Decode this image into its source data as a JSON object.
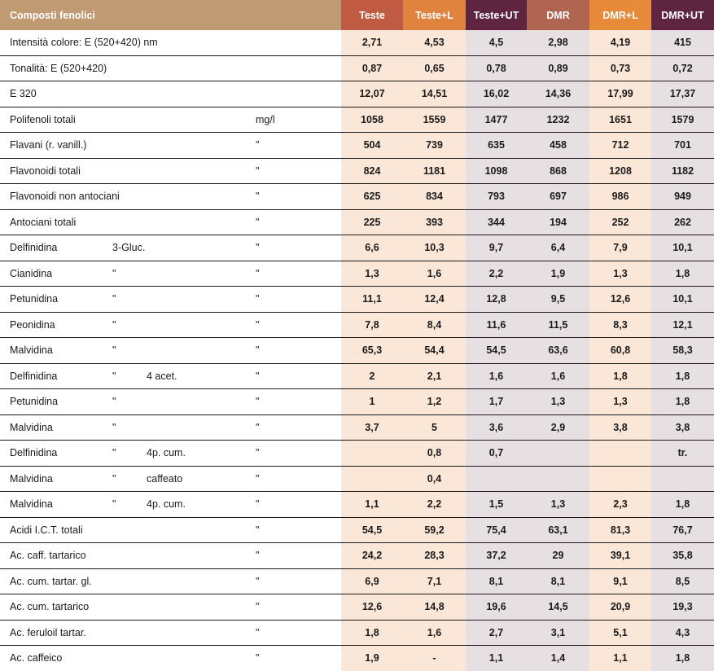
{
  "header": {
    "title": "Composti fenolici",
    "columns": [
      "Teste",
      "Teste+L",
      "Teste+UT",
      "DMR",
      "DMR+L",
      "DMR+UT"
    ]
  },
  "rows": [
    {
      "name": "Intensità colore: E (520+420) nm",
      "q": "",
      "s": "",
      "u": "",
      "v": [
        "2,71",
        "4,53",
        "4,5",
        "2,98",
        "4,19",
        "415"
      ]
    },
    {
      "name": "Tonalità: E (520+420)",
      "q": "",
      "s": "",
      "u": "",
      "v": [
        "0,87",
        "0,65",
        "0,78",
        "0,89",
        "0,73",
        "0,72"
      ]
    },
    {
      "name": "E 320",
      "q": "",
      "s": "",
      "u": "",
      "v": [
        "12,07",
        "14,51",
        "16,02",
        "14,36",
        "17,99",
        "17,37"
      ]
    },
    {
      "name": "Polifenoli totali",
      "q": "",
      "s": "",
      "u": "mg/l",
      "v": [
        "1058",
        "1559",
        "1477",
        "1232",
        "1651",
        "1579"
      ]
    },
    {
      "name": "Flavani (r. vanill.)",
      "q": "",
      "s": "",
      "u": "\"",
      "v": [
        "504",
        "739",
        "635",
        "458",
        "712",
        "701"
      ]
    },
    {
      "name": "Flavonoidi totali",
      "q": "",
      "s": "",
      "u": "\"",
      "v": [
        "824",
        "1181",
        "1098",
        "868",
        "1208",
        "1182"
      ]
    },
    {
      "name": "Flavonoidi non antociani",
      "q": "",
      "s": "",
      "u": "\"",
      "v": [
        "625",
        "834",
        "793",
        "697",
        "986",
        "949"
      ]
    },
    {
      "name": "Antociani totali",
      "q": "",
      "s": "",
      "u": "\"",
      "v": [
        "225",
        "393",
        "344",
        "194",
        "252",
        "262"
      ]
    },
    {
      "name": "Delfinidina",
      "q": "3-Gluc.",
      "s": "",
      "u": "\"",
      "v": [
        "6,6",
        "10,3",
        "9,7",
        "6,4",
        "7,9",
        "10,1"
      ]
    },
    {
      "name": "Cianidina",
      "q": "\"",
      "s": "",
      "u": "\"",
      "v": [
        "1,3",
        "1,6",
        "2,2",
        "1,9",
        "1,3",
        "1,8"
      ]
    },
    {
      "name": "Petunidina",
      "q": "\"",
      "s": "",
      "u": "\"",
      "v": [
        "11,1",
        "12,4",
        "12,8",
        "9,5",
        "12,6",
        "10,1"
      ]
    },
    {
      "name": "Peonidina",
      "q": "\"",
      "s": "",
      "u": "\"",
      "v": [
        "7,8",
        "8,4",
        "11,6",
        "11,5",
        "8,3",
        "12,1"
      ]
    },
    {
      "name": "Malvidina",
      "q": "\"",
      "s": "",
      "u": "\"",
      "v": [
        "65,3",
        "54,4",
        "54,5",
        "63,6",
        "60,8",
        "58,3"
      ]
    },
    {
      "name": "Delfinidina",
      "q": "\"",
      "s": "4 acet.",
      "u": "\"",
      "v": [
        "2",
        "2,1",
        "1,6",
        "1,6",
        "1,8",
        "1,8"
      ]
    },
    {
      "name": "Petunidina",
      "q": "\"",
      "s": "",
      "u": "\"",
      "v": [
        "1",
        "1,2",
        "1,7",
        "1,3",
        "1,3",
        "1,8"
      ]
    },
    {
      "name": "Malvidina",
      "q": "\"",
      "s": "",
      "u": "\"",
      "v": [
        "3,7",
        "5",
        "3,6",
        "2,9",
        "3,8",
        "3,8"
      ]
    },
    {
      "name": "Delfinidina",
      "q": "\"",
      "s": "4p. cum.",
      "u": "\"",
      "v": [
        "",
        "0,8",
        "0,7",
        "",
        "",
        "tr."
      ]
    },
    {
      "name": "Malvidina",
      "q": "\"",
      "s": "caffeato",
      "u": "\"",
      "v": [
        "",
        "0,4",
        "",
        "",
        "",
        ""
      ]
    },
    {
      "name": "Malvidina",
      "q": "\"",
      "s": "4p. cum.",
      "u": "\"",
      "v": [
        "1,1",
        "2,2",
        "1,5",
        "1,3",
        "2,3",
        "1,8"
      ]
    },
    {
      "name": "Acidi I.C.T. totali",
      "q": "",
      "s": "",
      "u": "\"",
      "v": [
        "54,5",
        "59,2",
        "75,4",
        "63,1",
        "81,3",
        "76,7"
      ]
    },
    {
      "name": "Ac. caff. tartarico",
      "q": "",
      "s": "",
      "u": "\"",
      "v": [
        "24,2",
        "28,3",
        "37,2",
        "29",
        "39,1",
        "35,8"
      ]
    },
    {
      "name": "Ac. cum. tartar. gl.",
      "q": "",
      "s": "",
      "u": "\"",
      "v": [
        "6,9",
        "7,1",
        "8,1",
        "8,1",
        "9,1",
        "8,5"
      ]
    },
    {
      "name": "Ac. cum. tartarico",
      "q": "",
      "s": "",
      "u": "\"",
      "v": [
        "12,6",
        "14,8",
        "19,6",
        "14,5",
        "20,9",
        "19,3"
      ]
    },
    {
      "name": "Ac. feruloil tartar.",
      "q": "",
      "s": "",
      "u": "\"",
      "v": [
        "1,8",
        "1,6",
        "2,7",
        "3,1",
        "5,1",
        "4,3"
      ]
    },
    {
      "name": "Ac. caffeico",
      "q": "",
      "s": "",
      "u": "\"",
      "v": [
        "1,9",
        "-",
        "1,1",
        "1,4",
        "1,1",
        "1,8"
      ]
    }
  ]
}
